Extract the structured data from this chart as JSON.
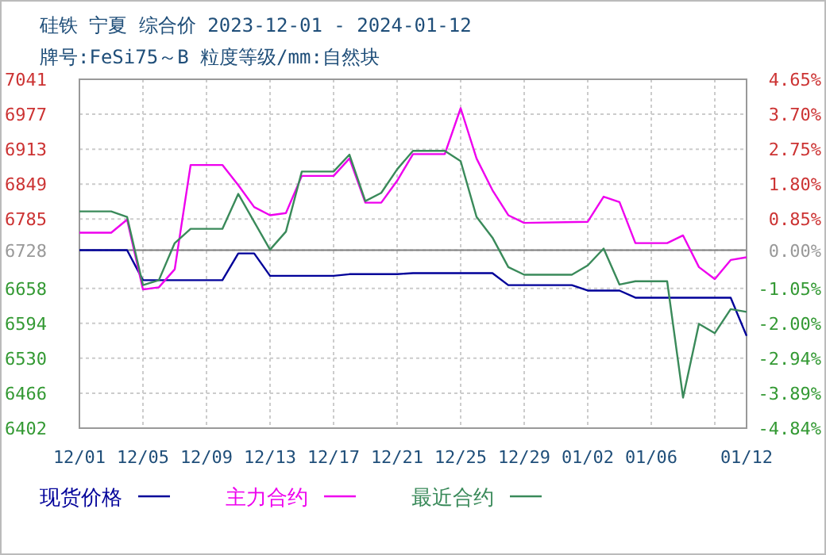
{
  "chart_data": {
    "type": "line",
    "title": "硅铁 宁夏 综合价 2023-12-01 - 2024-01-12",
    "subtitle": "牌号:FeSi75～B 粒度等级/mm:自然块",
    "xlim": [
      "2023-12-01",
      "2024-01-12"
    ],
    "xticks": [
      {
        "value": "2023-12-01",
        "label": "12/01"
      },
      {
        "value": "2023-12-05",
        "label": "12/05"
      },
      {
        "value": "2023-12-09",
        "label": "12/09"
      },
      {
        "value": "2023-12-13",
        "label": "12/13"
      },
      {
        "value": "2023-12-17",
        "label": "12/17"
      },
      {
        "value": "2023-12-21",
        "label": "12/21"
      },
      {
        "value": "2023-12-25",
        "label": "12/25"
      },
      {
        "value": "2023-12-29",
        "label": "12/29"
      },
      {
        "value": "2024-01-02",
        "label": "01/02"
      },
      {
        "value": "2024-01-06",
        "label": "01/06"
      },
      {
        "value": "2024-01-10",
        "label": null
      },
      {
        "value": "2024-01-12",
        "label": "01/12"
      }
    ],
    "ylim": [
      6402,
      7041
    ],
    "yticks": [
      6402,
      6466,
      6530,
      6594,
      6658,
      6728,
      6785,
      6849,
      6913,
      6977,
      7041
    ],
    "y2lim": [
      -4.84,
      4.65
    ],
    "y2ticks": [
      {
        "value": -4.84,
        "label": "-4.84%"
      },
      {
        "value": -3.89,
        "label": "-3.89%"
      },
      {
        "value": -2.94,
        "label": "-2.94%"
      },
      {
        "value": -2.0,
        "label": "-2.00%"
      },
      {
        "value": -1.05,
        "label": "-1.05%"
      },
      {
        "value": 0,
        "label": "0.00%"
      },
      {
        "value": 0.85,
        "label": "0.85%"
      },
      {
        "value": 1.8,
        "label": "1.80%"
      },
      {
        "value": 2.75,
        "label": "2.75%"
      },
      {
        "value": 3.7,
        "label": "3.70%"
      },
      {
        "value": 4.65,
        "label": "4.65%"
      }
    ],
    "grid": true,
    "legend": "bottom",
    "line_style": "solid",
    "marker": "none",
    "ref_lines": [
      {
        "axis": "y",
        "value": 6728,
        "label": null,
        "color": "#808080"
      }
    ],
    "series": [
      {
        "name": "现货价格",
        "color": "#000099",
        "x": [
          "2023-12-01",
          "2023-12-04",
          "2023-12-05",
          "2023-12-10",
          "2023-12-11",
          "2023-12-12",
          "2023-12-13",
          "2023-12-17",
          "2023-12-18",
          "2023-12-21",
          "2023-12-22",
          "2023-12-27",
          "2023-12-28",
          "2024-01-01",
          "2024-01-02",
          "2024-01-04",
          "2024-01-05",
          "2024-01-11",
          "2024-01-12"
        ],
        "values": [
          6728,
          6728,
          6673,
          6673,
          6722,
          6722,
          6681,
          6681,
          6684,
          6684,
          6686,
          6686,
          6664,
          6664,
          6654,
          6654,
          6641,
          6641,
          6571
        ]
      },
      {
        "name": "主力合约",
        "color": "#ee00ee",
        "x": [
          "2023-12-01",
          "2023-12-03",
          "2023-12-04",
          "2023-12-05",
          "2023-12-06",
          "2023-12-07",
          "2023-12-08",
          "2023-12-10",
          "2023-12-11",
          "2023-12-12",
          "2023-12-13",
          "2023-12-14",
          "2023-12-15",
          "2023-12-17",
          "2023-12-18",
          "2023-12-19",
          "2023-12-20",
          "2023-12-21",
          "2023-12-22",
          "2023-12-24",
          "2023-12-25",
          "2023-12-26",
          "2023-12-27",
          "2023-12-28",
          "2023-12-29",
          "2024-01-02",
          "2024-01-03",
          "2024-01-04",
          "2024-01-05",
          "2024-01-07",
          "2024-01-08",
          "2024-01-09",
          "2024-01-10",
          "2024-01-11",
          "2024-01-12"
        ],
        "values": [
          6760,
          6760,
          6784,
          6656,
          6660,
          6693,
          6884,
          6884,
          6847,
          6807,
          6792,
          6796,
          6864,
          6864,
          6896,
          6815,
          6815,
          6855,
          6904,
          6904,
          6988,
          6896,
          6838,
          6792,
          6778,
          6780,
          6826,
          6816,
          6741,
          6741,
          6755,
          6697,
          6675,
          6710,
          6715
        ]
      },
      {
        "name": "最近合约",
        "color": "#3a8a5a",
        "x": [
          "2023-12-01",
          "2023-12-03",
          "2023-12-04",
          "2023-12-05",
          "2023-12-06",
          "2023-12-07",
          "2023-12-08",
          "2023-12-10",
          "2023-12-11",
          "2023-12-13",
          "2023-12-14",
          "2023-12-15",
          "2023-12-17",
          "2023-12-18",
          "2023-12-19",
          "2023-12-20",
          "2023-12-21",
          "2023-12-22",
          "2023-12-24",
          "2023-12-25",
          "2023-12-26",
          "2023-12-27",
          "2023-12-28",
          "2023-12-29",
          "2024-01-01",
          "2024-01-02",
          "2024-01-03",
          "2024-01-04",
          "2024-01-05",
          "2024-01-07",
          "2024-01-08",
          "2024-01-09",
          "2024-01-10",
          "2024-01-11",
          "2024-01-12"
        ],
        "values": [
          6799,
          6799,
          6789,
          6664,
          6673,
          6741,
          6767,
          6767,
          6831,
          6729,
          6762,
          6872,
          6872,
          6903,
          6818,
          6833,
          6876,
          6910,
          6910,
          6891,
          6789,
          6751,
          6697,
          6683,
          6683,
          6700,
          6731,
          6665,
          6671,
          6671,
          6458,
          6593,
          6576,
          6620,
          6615
        ]
      }
    ]
  }
}
